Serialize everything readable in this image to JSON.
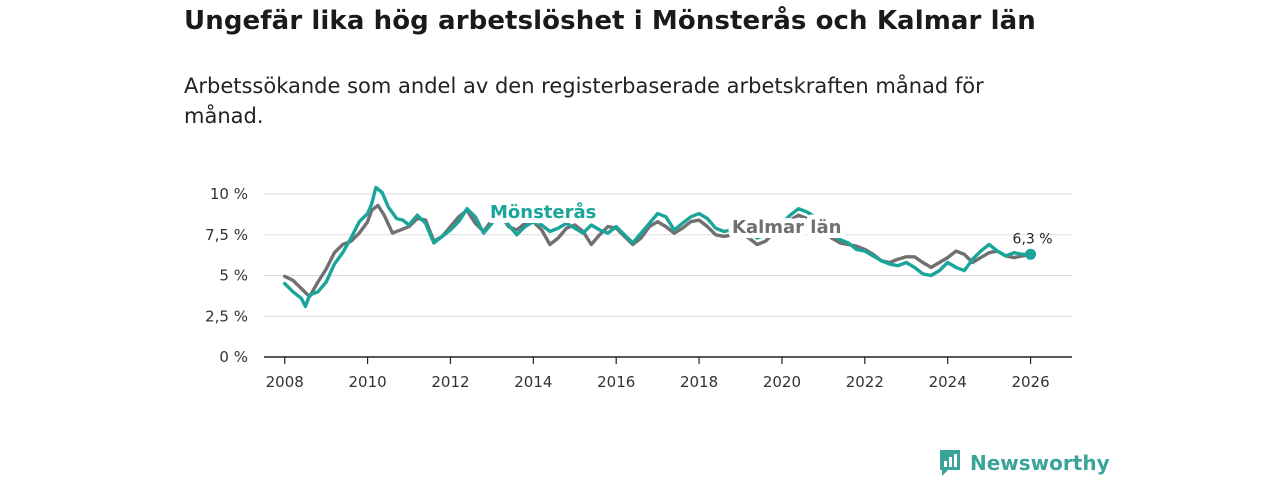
{
  "header": {
    "title": "Ungefär lika hög arbetslöshet i Mönsterås och Kalmar län",
    "subtitle": "Arbetssökande som andel av den registerbaserade arbetskraften månad för månad."
  },
  "brand": {
    "name": "Newsworthy",
    "color": "#3aa39a"
  },
  "colors": {
    "primary": "#1aa59a",
    "secondary": "#707070",
    "grid": "#dddddd",
    "axis": "#222222"
  },
  "chart_data": {
    "type": "line",
    "title": "Ungefär lika hög arbetslöshet i Mönsterås och Kalmar län",
    "xlabel": "",
    "ylabel": "",
    "xlim": [
      2007.5,
      2027
    ],
    "ylim": [
      0,
      10
    ],
    "grid": true,
    "x_ticks": [
      2008,
      2010,
      2012,
      2014,
      2016,
      2018,
      2020,
      2022,
      2024,
      2026
    ],
    "x_tick_labels": [
      "2008",
      "2010",
      "2012",
      "2014",
      "2016",
      "2018",
      "2020",
      "2022",
      "2024",
      "2026"
    ],
    "y_ticks": [
      0,
      2.5,
      5,
      7.5,
      10
    ],
    "y_tick_labels": [
      "0 %",
      "2,5 %",
      "5 %",
      "7,5 %",
      "10 %"
    ],
    "end_label": "6,3 %",
    "series": [
      {
        "name": "Kalmar län",
        "label": "Kalmar län",
        "color": "#707070",
        "points": [
          [
            2008.0,
            4.95
          ],
          [
            2008.2,
            4.7
          ],
          [
            2008.4,
            4.2
          ],
          [
            2008.6,
            3.7
          ],
          [
            2008.8,
            4.6
          ],
          [
            2009.0,
            5.4
          ],
          [
            2009.2,
            6.4
          ],
          [
            2009.4,
            6.9
          ],
          [
            2009.6,
            7.1
          ],
          [
            2009.8,
            7.6
          ],
          [
            2010.0,
            8.3
          ],
          [
            2010.1,
            9.0
          ],
          [
            2010.25,
            9.3
          ],
          [
            2010.4,
            8.7
          ],
          [
            2010.6,
            7.6
          ],
          [
            2010.8,
            7.8
          ],
          [
            2011.0,
            8.0
          ],
          [
            2011.2,
            8.5
          ],
          [
            2011.4,
            8.4
          ],
          [
            2011.6,
            7.1
          ],
          [
            2011.8,
            7.4
          ],
          [
            2012.0,
            8.0
          ],
          [
            2012.2,
            8.6
          ],
          [
            2012.4,
            9.0
          ],
          [
            2012.6,
            8.2
          ],
          [
            2012.8,
            7.7
          ],
          [
            2013.0,
            8.4
          ],
          [
            2013.2,
            8.8
          ],
          [
            2013.4,
            8.0
          ],
          [
            2013.6,
            7.8
          ],
          [
            2013.8,
            8.2
          ],
          [
            2014.0,
            8.3
          ],
          [
            2014.2,
            7.8
          ],
          [
            2014.4,
            6.9
          ],
          [
            2014.6,
            7.3
          ],
          [
            2014.8,
            7.9
          ],
          [
            2015.0,
            8.1
          ],
          [
            2015.2,
            7.7
          ],
          [
            2015.4,
            6.9
          ],
          [
            2015.6,
            7.5
          ],
          [
            2015.8,
            8.0
          ],
          [
            2016.0,
            7.9
          ],
          [
            2016.2,
            7.4
          ],
          [
            2016.4,
            6.9
          ],
          [
            2016.6,
            7.3
          ],
          [
            2016.8,
            8.0
          ],
          [
            2017.0,
            8.3
          ],
          [
            2017.2,
            8.0
          ],
          [
            2017.4,
            7.6
          ],
          [
            2017.6,
            7.9
          ],
          [
            2017.8,
            8.3
          ],
          [
            2018.0,
            8.4
          ],
          [
            2018.2,
            8.0
          ],
          [
            2018.4,
            7.5
          ],
          [
            2018.6,
            7.4
          ],
          [
            2019.0,
            7.6
          ],
          [
            2019.2,
            7.3
          ],
          [
            2019.4,
            6.9
          ],
          [
            2019.6,
            7.1
          ],
          [
            2019.8,
            7.6
          ],
          [
            2020.0,
            7.9
          ],
          [
            2020.2,
            8.4
          ],
          [
            2020.4,
            8.7
          ],
          [
            2020.6,
            8.5
          ],
          [
            2020.8,
            8.3
          ],
          [
            2021.0,
            7.9
          ],
          [
            2021.2,
            7.3
          ],
          [
            2021.4,
            7.0
          ],
          [
            2021.6,
            6.9
          ],
          [
            2021.8,
            6.8
          ],
          [
            2022.0,
            6.6
          ],
          [
            2022.2,
            6.3
          ],
          [
            2022.4,
            5.9
          ],
          [
            2022.6,
            5.8
          ],
          [
            2022.8,
            6.0
          ],
          [
            2023.0,
            6.15
          ],
          [
            2023.2,
            6.15
          ],
          [
            2023.4,
            5.8
          ],
          [
            2023.6,
            5.5
          ],
          [
            2023.8,
            5.8
          ],
          [
            2024.0,
            6.1
          ],
          [
            2024.2,
            6.5
          ],
          [
            2024.4,
            6.3
          ],
          [
            2024.6,
            5.8
          ],
          [
            2024.8,
            6.1
          ],
          [
            2025.0,
            6.4
          ],
          [
            2025.2,
            6.5
          ],
          [
            2025.4,
            6.2
          ],
          [
            2025.6,
            6.1
          ],
          [
            2025.8,
            6.2
          ],
          [
            2026.0,
            6.3
          ]
        ]
      },
      {
        "name": "Mönsterås",
        "label": "Mönsterås",
        "color": "#1aa59a",
        "points": [
          [
            2008.0,
            4.5
          ],
          [
            2008.2,
            4.0
          ],
          [
            2008.4,
            3.6
          ],
          [
            2008.5,
            3.1
          ],
          [
            2008.6,
            3.8
          ],
          [
            2008.8,
            4.0
          ],
          [
            2009.0,
            4.6
          ],
          [
            2009.2,
            5.7
          ],
          [
            2009.4,
            6.4
          ],
          [
            2009.6,
            7.3
          ],
          [
            2009.8,
            8.3
          ],
          [
            2010.0,
            8.8
          ],
          [
            2010.1,
            9.4
          ],
          [
            2010.2,
            10.4
          ],
          [
            2010.35,
            10.1
          ],
          [
            2010.5,
            9.2
          ],
          [
            2010.7,
            8.5
          ],
          [
            2010.85,
            8.4
          ],
          [
            2011.0,
            8.1
          ],
          [
            2011.2,
            8.7
          ],
          [
            2011.4,
            8.2
          ],
          [
            2011.6,
            7.0
          ],
          [
            2011.8,
            7.4
          ],
          [
            2012.0,
            7.8
          ],
          [
            2012.2,
            8.3
          ],
          [
            2012.4,
            9.1
          ],
          [
            2012.6,
            8.6
          ],
          [
            2012.8,
            7.6
          ],
          [
            2013.0,
            8.2
          ],
          [
            2013.2,
            8.9
          ],
          [
            2013.4,
            8.1
          ],
          [
            2013.6,
            7.5
          ],
          [
            2013.8,
            8.0
          ],
          [
            2014.0,
            8.3
          ],
          [
            2014.2,
            8.1
          ],
          [
            2014.4,
            7.7
          ],
          [
            2014.6,
            7.9
          ],
          [
            2014.8,
            8.2
          ],
          [
            2015.0,
            7.9
          ],
          [
            2015.2,
            7.6
          ],
          [
            2015.4,
            8.1
          ],
          [
            2015.6,
            7.8
          ],
          [
            2015.8,
            7.6
          ],
          [
            2016.0,
            8.0
          ],
          [
            2016.2,
            7.5
          ],
          [
            2016.4,
            7.0
          ],
          [
            2016.6,
            7.6
          ],
          [
            2016.8,
            8.2
          ],
          [
            2017.0,
            8.8
          ],
          [
            2017.2,
            8.6
          ],
          [
            2017.4,
            7.8
          ],
          [
            2017.6,
            8.2
          ],
          [
            2017.8,
            8.6
          ],
          [
            2018.0,
            8.8
          ],
          [
            2018.2,
            8.5
          ],
          [
            2018.4,
            7.9
          ],
          [
            2018.6,
            7.7
          ],
          [
            2019.0,
            7.9
          ],
          [
            2019.2,
            7.7
          ],
          [
            2019.4,
            7.3
          ],
          [
            2019.6,
            7.5
          ],
          [
            2019.8,
            7.8
          ],
          [
            2020.0,
            8.2
          ],
          [
            2020.2,
            8.7
          ],
          [
            2020.4,
            9.1
          ],
          [
            2020.6,
            8.9
          ],
          [
            2020.8,
            8.6
          ],
          [
            2021.0,
            8.0
          ],
          [
            2021.2,
            7.6
          ],
          [
            2021.4,
            7.2
          ],
          [
            2021.6,
            7.0
          ],
          [
            2021.8,
            6.6
          ],
          [
            2022.0,
            6.5
          ],
          [
            2022.2,
            6.2
          ],
          [
            2022.4,
            5.9
          ],
          [
            2022.6,
            5.7
          ],
          [
            2022.8,
            5.6
          ],
          [
            2023.0,
            5.8
          ],
          [
            2023.2,
            5.5
          ],
          [
            2023.4,
            5.1
          ],
          [
            2023.6,
            5.0
          ],
          [
            2023.8,
            5.3
          ],
          [
            2024.0,
            5.8
          ],
          [
            2024.2,
            5.5
          ],
          [
            2024.4,
            5.3
          ],
          [
            2024.6,
            6.0
          ],
          [
            2024.8,
            6.5
          ],
          [
            2025.0,
            6.9
          ],
          [
            2025.2,
            6.5
          ],
          [
            2025.4,
            6.2
          ],
          [
            2025.6,
            6.4
          ],
          [
            2025.8,
            6.3
          ],
          [
            2026.0,
            6.3
          ]
        ]
      }
    ]
  }
}
